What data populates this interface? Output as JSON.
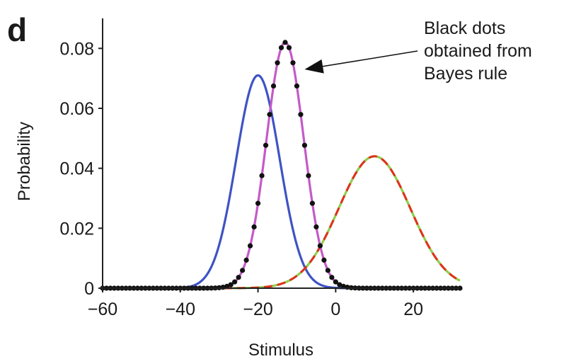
{
  "chart_data": {
    "type": "line",
    "panel_label": "d",
    "xlabel": "Stimulus",
    "ylabel": "Probability",
    "xlim": [
      -60,
      32
    ],
    "ylim": [
      0,
      0.09
    ],
    "x_ticks": [
      -60,
      -40,
      -20,
      0,
      20
    ],
    "x_tick_labels": [
      "−60",
      "−40",
      "−20",
      "0",
      "20"
    ],
    "y_ticks": [
      0,
      0.02,
      0.04,
      0.06,
      0.08
    ],
    "y_tick_labels": [
      "0",
      "0.02",
      "0.04",
      "0.06",
      "0.08"
    ],
    "grid": false,
    "legend": "none",
    "series": [
      {
        "kind": "gaussian",
        "mean": -20,
        "sd": 5.6,
        "peak": 0.071,
        "color": "#3f53c4",
        "style": "solid"
      },
      {
        "kind": "gaussian",
        "mean": 10,
        "sd": 9.2,
        "peak": 0.044,
        "color": "#8fcf4a",
        "style": "solid"
      },
      {
        "kind": "gaussian",
        "mean": 10,
        "sd": 9.2,
        "peak": 0.044,
        "color": "#e0301e",
        "style": "dashed"
      },
      {
        "kind": "gaussian",
        "mean": -13,
        "sd": 4.8,
        "peak": 0.082,
        "color": "#c45ac8",
        "style": "solid"
      },
      {
        "kind": "gaussian-dots",
        "mean": -13,
        "sd": 4.8,
        "peak": 0.082,
        "step": 1,
        "color": "#111111",
        "style": "dots"
      }
    ],
    "annotation": {
      "lines": [
        "Black dots",
        "obtained from",
        "Bayes rule"
      ],
      "arrow_target": [
        -8,
        0.073
      ]
    }
  }
}
